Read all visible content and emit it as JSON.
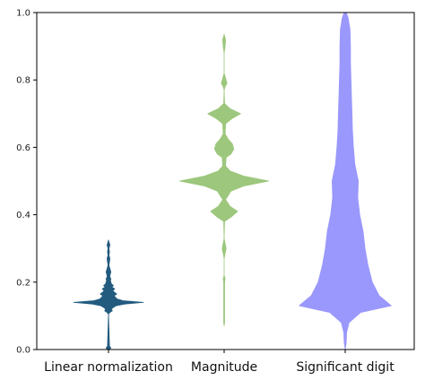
{
  "chart_data": {
    "type": "violin",
    "title": "",
    "xlabel": "",
    "ylabel": "",
    "ylim": [
      0,
      1.0
    ],
    "yticks": [
      "0.0",
      "0.2",
      "0.4",
      "0.6",
      "0.8",
      "1.0"
    ],
    "grid": false,
    "categories": [
      "Linear normalization",
      "Magnitude",
      "Significant digit"
    ],
    "series": [
      {
        "color": "#235b7f",
        "profile": [
          [
            0.0,
            0.02
          ],
          [
            0.005,
            0.05
          ],
          [
            0.01,
            0.02
          ],
          [
            0.105,
            0.0
          ],
          [
            0.11,
            0.03
          ],
          [
            0.115,
            0.08
          ],
          [
            0.12,
            0.06
          ],
          [
            0.125,
            0.1
          ],
          [
            0.13,
            0.16
          ],
          [
            0.135,
            0.34
          ],
          [
            0.14,
            0.72
          ],
          [
            0.145,
            0.3
          ],
          [
            0.15,
            0.18
          ],
          [
            0.155,
            0.14
          ],
          [
            0.16,
            0.12
          ],
          [
            0.165,
            0.17
          ],
          [
            0.17,
            0.12
          ],
          [
            0.175,
            0.09
          ],
          [
            0.18,
            0.13
          ],
          [
            0.185,
            0.07
          ],
          [
            0.19,
            0.1
          ],
          [
            0.195,
            0.06
          ],
          [
            0.2,
            0.05
          ],
          [
            0.205,
            0.04
          ],
          [
            0.21,
            0.05
          ],
          [
            0.215,
            0.03
          ],
          [
            0.22,
            0.03
          ],
          [
            0.23,
            0.05
          ],
          [
            0.24,
            0.03
          ],
          [
            0.25,
            0.01
          ],
          [
            0.26,
            0.02
          ],
          [
            0.27,
            0.03
          ],
          [
            0.28,
            0.01
          ],
          [
            0.29,
            0.02
          ],
          [
            0.3,
            0.01
          ],
          [
            0.31,
            0.03
          ],
          [
            0.32,
            0.01
          ],
          [
            0.325,
            0.0
          ]
        ]
      },
      {
        "color": "#9dc77d",
        "profile": [
          [
            0.07,
            0.0
          ],
          [
            0.08,
            0.01
          ],
          [
            0.2,
            0.01
          ],
          [
            0.21,
            0.02
          ],
          [
            0.22,
            0.0
          ],
          [
            0.27,
            0.0
          ],
          [
            0.285,
            0.02
          ],
          [
            0.3,
            0.04
          ],
          [
            0.315,
            0.02
          ],
          [
            0.33,
            0.0
          ],
          [
            0.38,
            0.01
          ],
          [
            0.395,
            0.16
          ],
          [
            0.41,
            0.28
          ],
          [
            0.425,
            0.12
          ],
          [
            0.445,
            0.03
          ],
          [
            0.47,
            0.14
          ],
          [
            0.485,
            0.4
          ],
          [
            0.5,
            0.92
          ],
          [
            0.515,
            0.4
          ],
          [
            0.53,
            0.12
          ],
          [
            0.545,
            0.03
          ],
          [
            0.57,
            0.04
          ],
          [
            0.58,
            0.14
          ],
          [
            0.595,
            0.2
          ],
          [
            0.61,
            0.17
          ],
          [
            0.625,
            0.08
          ],
          [
            0.64,
            0.02
          ],
          [
            0.67,
            0.03
          ],
          [
            0.685,
            0.16
          ],
          [
            0.7,
            0.34
          ],
          [
            0.715,
            0.12
          ],
          [
            0.73,
            0.01
          ],
          [
            0.77,
            0.0
          ],
          [
            0.78,
            0.02
          ],
          [
            0.79,
            0.06
          ],
          [
            0.805,
            0.03
          ],
          [
            0.82,
            0.0
          ],
          [
            0.88,
            0.0
          ],
          [
            0.9,
            0.02
          ],
          [
            0.92,
            0.03
          ],
          [
            0.935,
            0.0
          ]
        ]
      },
      {
        "color": "#9a98fc",
        "profile": [
          [
            0.0,
            0.0
          ],
          [
            0.02,
            0.02
          ],
          [
            0.05,
            0.03
          ],
          [
            0.08,
            0.08
          ],
          [
            0.11,
            0.32
          ],
          [
            0.13,
            0.95
          ],
          [
            0.16,
            0.7
          ],
          [
            0.2,
            0.56
          ],
          [
            0.25,
            0.47
          ],
          [
            0.3,
            0.41
          ],
          [
            0.35,
            0.37
          ],
          [
            0.4,
            0.3
          ],
          [
            0.45,
            0.26
          ],
          [
            0.5,
            0.27
          ],
          [
            0.55,
            0.2
          ],
          [
            0.6,
            0.17
          ],
          [
            0.65,
            0.15
          ],
          [
            0.7,
            0.14
          ],
          [
            0.75,
            0.13
          ],
          [
            0.8,
            0.12
          ],
          [
            0.85,
            0.11
          ],
          [
            0.9,
            0.11
          ],
          [
            0.95,
            0.1
          ],
          [
            0.985,
            0.06
          ],
          [
            1.0,
            0.02
          ]
        ]
      }
    ]
  }
}
